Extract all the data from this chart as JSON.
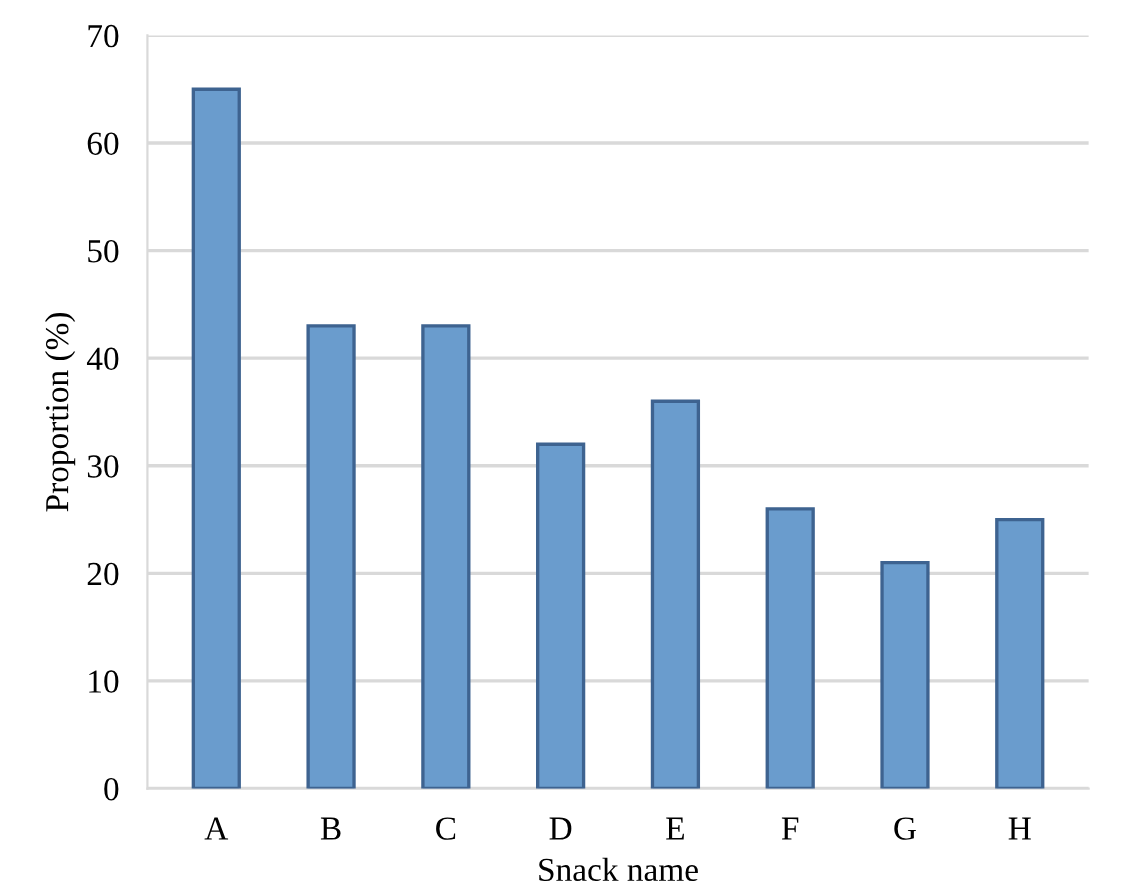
{
  "chart_data": {
    "type": "bar",
    "xlabel": "Snack name",
    "ylabel": "Proportion (%)",
    "categories": [
      "A",
      "B",
      "C",
      "D",
      "E",
      "F",
      "G",
      "H"
    ],
    "values": [
      65,
      43,
      43,
      32,
      36,
      26,
      21,
      25
    ],
    "color": "#6a9ccd",
    "ylim": [
      0,
      70
    ],
    "yticks": [
      0,
      10,
      20,
      30,
      40,
      50,
      60,
      70
    ],
    "grid": "y"
  }
}
